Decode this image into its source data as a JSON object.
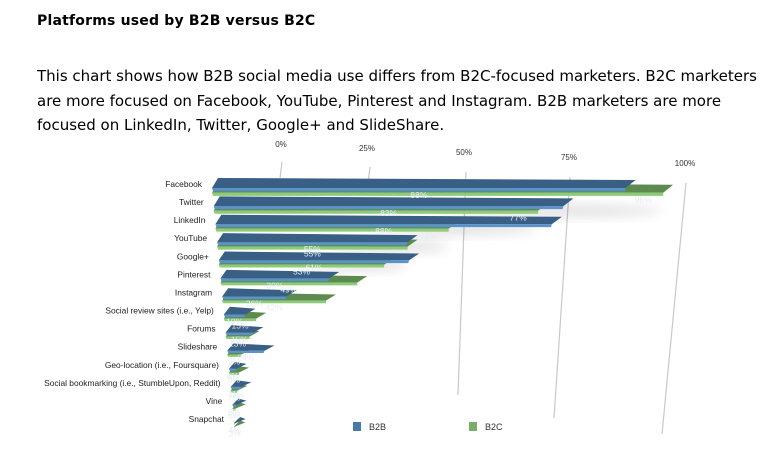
{
  "page": {
    "title": "Platforms used by B2B versus B2C",
    "description": "This chart shows how B2B social media use differs from B2C-focused marketers. B2C marketers are more focused on Facebook, YouTube, Pinterest and Instagram. B2B marketers are more focused on LinkedIn, Twitter, Google+ and SlideShare."
  },
  "colors": {
    "b2b": "#3a5f85",
    "b2b_edge": "#5a93cc",
    "b2c": "#5d8a4f",
    "b2c_edge": "#8ccc78",
    "grid": "#c8c8c8"
  },
  "chart_data": {
    "type": "bar",
    "orientation": "horizontal",
    "style": "3d-perspective",
    "title": "Platforms used by B2B versus B2C",
    "xlabel": "",
    "ylabel": "",
    "xlim": [
      0,
      100
    ],
    "x_ticks": [
      "0%",
      "25%",
      "50%",
      "75%",
      "100%"
    ],
    "grid": true,
    "legend_position": "bottom",
    "categories": [
      "Facebook",
      "Twitter",
      "LinkedIn",
      "YouTube",
      "Google+",
      "Pinterest",
      "Instagram",
      "Social review sites (i.e., Yelp)",
      "Forums",
      "Slideshare",
      "Geo-location (i.e., Foursquare)",
      "Social bookmarking (i.e., StumbleUpon, Reddit)",
      "Vine",
      "Snapchat"
    ],
    "series": [
      {
        "name": "B2B",
        "values": [
          88,
          83,
          88,
          55,
          61,
          39,
          26,
          10,
          15,
          24,
          6,
          11,
          6,
          4
        ]
      },
      {
        "name": "B2C",
        "values": [
          96,
          77,
          61,
          55,
          53,
          49,
          42,
          15,
          13,
          9,
          8,
          7,
          5,
          3
        ]
      }
    ],
    "value_labels": {
      "B2B": [
        "88%",
        "83%",
        "88%",
        "55%",
        "61%",
        "39%",
        "26%",
        "10%",
        "15%",
        "24%",
        "6%",
        "11%",
        "6%",
        "4%"
      ],
      "B2C": [
        "96%",
        "77%",
        "61%",
        "55%",
        "53%",
        "49%",
        "42%",
        "15%",
        "13%",
        "9%",
        "8%",
        "7%",
        "5%",
        "3%"
      ]
    }
  },
  "legend": [
    {
      "label": "B2B",
      "color": "#4a7aa8"
    },
    {
      "label": "B2C",
      "color": "#7aac6a"
    }
  ]
}
